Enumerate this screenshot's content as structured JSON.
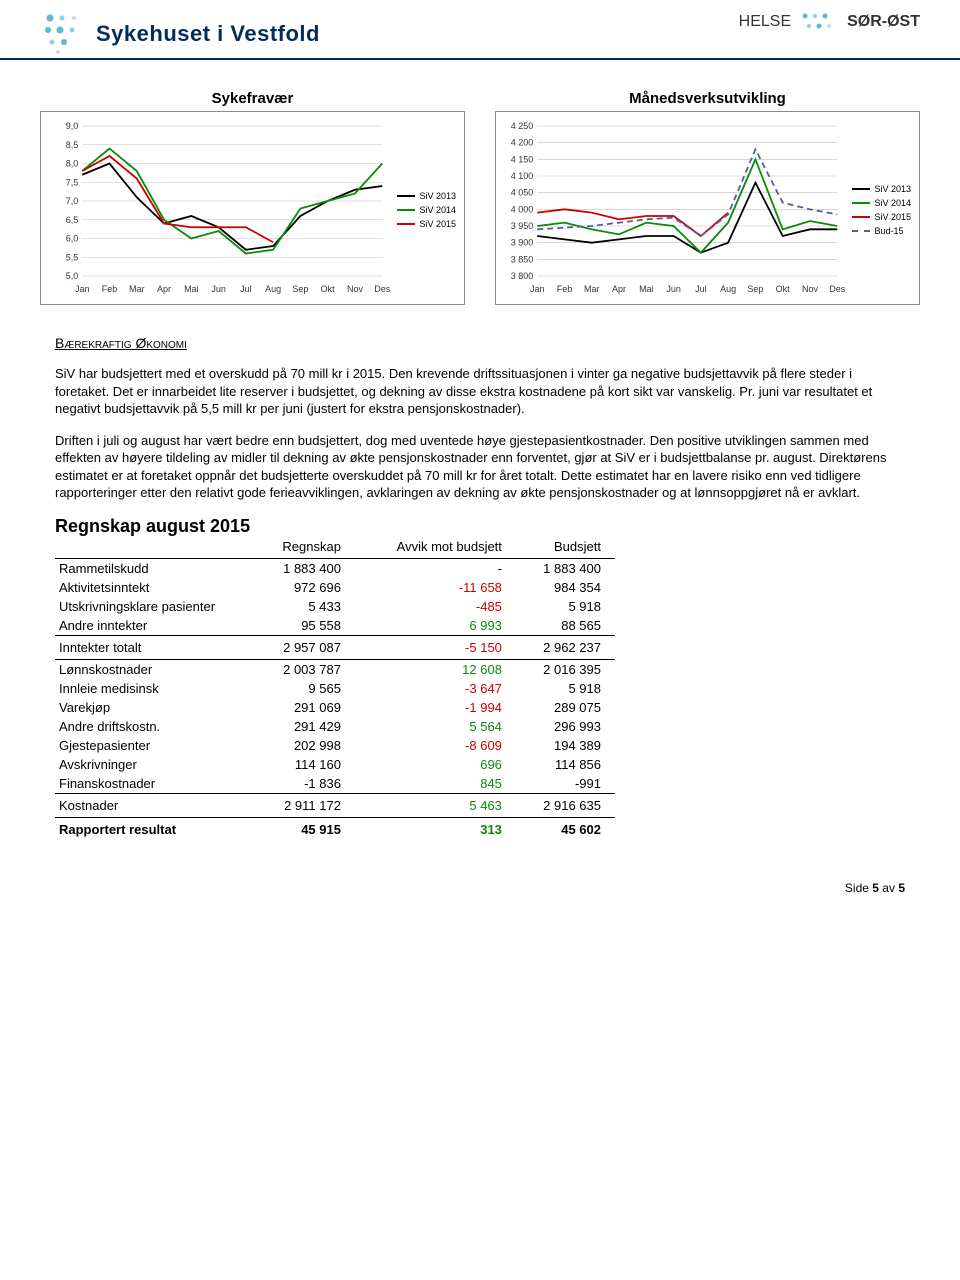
{
  "header": {
    "left_logo_text": "Sykehuset i Vestfold",
    "right_text_1": "HELSE",
    "right_text_2": "SØR-ØST",
    "brand_color": "#002d5c",
    "dot_colors": [
      "#5fb8d6",
      "#8fd0e6",
      "#b8e0ee",
      "#5fb8d6",
      "#8fd0e6"
    ]
  },
  "chart1": {
    "title": "Sykefravær",
    "type": "line",
    "months": [
      "Jan",
      "Feb",
      "Mar",
      "Apr",
      "Mai",
      "Jun",
      "Jul",
      "Aug",
      "Sep",
      "Okt",
      "Nov",
      "Des"
    ],
    "ymin": 5.0,
    "ymax": 9.0,
    "ystep": 0.5,
    "series": [
      {
        "name": "SiV 2013",
        "color": "#000000",
        "dash": "",
        "values": [
          7.7,
          8.0,
          7.1,
          6.4,
          6.6,
          6.3,
          5.7,
          5.8,
          6.6,
          7.0,
          7.3,
          7.4
        ]
      },
      {
        "name": "SiV 2014",
        "color": "#0a8a0a",
        "dash": "",
        "values": [
          7.8,
          8.4,
          7.8,
          6.5,
          6.0,
          6.2,
          5.6,
          5.7,
          6.8,
          7.0,
          7.2,
          8.0
        ]
      },
      {
        "name": "SiV 2015",
        "color": "#cc0000",
        "dash": "",
        "values": [
          7.8,
          8.2,
          7.6,
          6.4,
          6.3,
          6.3,
          6.3,
          5.9,
          null,
          null,
          null,
          null
        ]
      }
    ],
    "plot_bg": "#ffffff",
    "grid_color": "#bfbfbf",
    "axis_fontsize": 9
  },
  "chart2": {
    "title": "Månedsverksutvikling",
    "type": "line",
    "months": [
      "Jan",
      "Feb",
      "Mar",
      "Apr",
      "Mai",
      "Jun",
      "Jul",
      "Aug",
      "Sep",
      "Okt",
      "Nov",
      "Des"
    ],
    "ymin": 3800,
    "ymax": 4250,
    "ystep": 50,
    "series": [
      {
        "name": "SiV 2013",
        "color": "#000000",
        "dash": "",
        "values": [
          3920,
          3910,
          3900,
          3910,
          3920,
          3920,
          3870,
          3900,
          4080,
          3920,
          3940,
          3940
        ]
      },
      {
        "name": "SiV 2014",
        "color": "#0a8a0a",
        "dash": "",
        "values": [
          3950,
          3960,
          3940,
          3925,
          3960,
          3950,
          3870,
          3960,
          4150,
          3940,
          3965,
          3950
        ]
      },
      {
        "name": "SiV 2015",
        "color": "#cc0000",
        "dash": "",
        "values": [
          3990,
          4000,
          3990,
          3970,
          3980,
          3980,
          3920,
          3990,
          null,
          null,
          null,
          null
        ]
      },
      {
        "name": "Bud-15",
        "color": "#5a5aa0",
        "dash": "6,4",
        "values": [
          3940,
          3945,
          3950,
          3960,
          3970,
          3975,
          3920,
          3985,
          4180,
          4020,
          4000,
          3985
        ]
      }
    ],
    "plot_bg": "#ffffff",
    "grid_color": "#bfbfbf",
    "axis_fontsize": 9
  },
  "section": {
    "heading": "Bærekraftig Økonomi",
    "para1": "SiV har budsjettert med et overskudd på 70 mill kr i 2015. Den krevende driftssituasjonen i vinter ga negative budsjettavvik på flere steder i foretaket. Det er innarbeidet lite reserver i budsjettet, og dekning av disse ekstra kostnadene på kort sikt var vanskelig. Pr. juni var resultatet et negativt budsjettavvik på 5,5 mill kr per juni (justert for ekstra pensjonskostnader).",
    "para2": "Driften i juli og august har vært bedre enn budsjettert, dog med uventede høye gjestepasientkostnader. Den positive utviklingen sammen med effekten av høyere tildeling av midler til dekning av økte pensjonskostnader enn forventet, gjør at SiV er i budsjettbalanse pr. august. Direktørens estimatet er at foretaket oppnår det budsjetterte overskuddet på 70 mill kr for året totalt. Dette estimatet har en lavere risiko enn ved tidligere rapporteringer etter den relativt gode ferieavviklingen, avklaringen av dekning av økte pensjonskostnader og at lønnsoppgjøret nå er avklart."
  },
  "table": {
    "title": "Regnskap august 2015",
    "columns": [
      "",
      "Regnskap",
      "Avvik mot budsjett",
      "Budsjett"
    ],
    "rows": [
      {
        "label": "Rammetilskudd",
        "v1": "1 883 400",
        "v2": "-",
        "c2": "",
        "v3": "1 883 400"
      },
      {
        "label": "Aktivitetsinntekt",
        "v1": "972 696",
        "v2": "-11 658",
        "c2": "red",
        "v3": "984 354"
      },
      {
        "label": "Utskrivningsklare pasienter",
        "v1": "5 433",
        "v2": "-485",
        "c2": "red",
        "v3": "5 918"
      },
      {
        "label": "Andre inntekter",
        "v1": "95 558",
        "v2": "6 993",
        "c2": "green",
        "v3": "88 565"
      }
    ],
    "sub1": {
      "label": "Inntekter totalt",
      "v1": "2 957 087",
      "v2": "-5 150",
      "c2": "red",
      "v3": "2 962 237"
    },
    "rows2": [
      {
        "label": "Lønnskostnader",
        "v1": "2 003 787",
        "v2": "12 608",
        "c2": "green",
        "v3": "2 016 395"
      },
      {
        "label": "Innleie medisinsk",
        "v1": "9 565",
        "v2": "-3 647",
        "c2": "red",
        "v3": "5 918"
      },
      {
        "label": "Varekjøp",
        "v1": "291 069",
        "v2": "-1 994",
        "c2": "red",
        "v3": "289 075"
      },
      {
        "label": "Andre driftskostn.",
        "v1": "291 429",
        "v2": "5 564",
        "c2": "green",
        "v3": "296 993"
      },
      {
        "label": "Gjestepasienter",
        "v1": "202 998",
        "v2": "-8 609",
        "c2": "red",
        "v3": "194 389"
      },
      {
        "label": "Avskrivninger",
        "v1": "114 160",
        "v2": "696",
        "c2": "green",
        "v3": "114 856"
      },
      {
        "label": "Finanskostnader",
        "v1": "-1 836",
        "v2": "845",
        "c2": "green",
        "v3": "-991"
      }
    ],
    "sub2": {
      "label": "Kostnader",
      "v1": "2 911 172",
      "v2": "5 463",
      "c2": "green",
      "v3": "2 916 635"
    },
    "total": {
      "label": "Rapportert resultat",
      "v1": "45 915",
      "v2": "313",
      "c2": "green",
      "v3": "45 602"
    }
  },
  "footer": {
    "text_prefix": "Side ",
    "page": "5",
    "text_mid": " av ",
    "total": "5"
  }
}
